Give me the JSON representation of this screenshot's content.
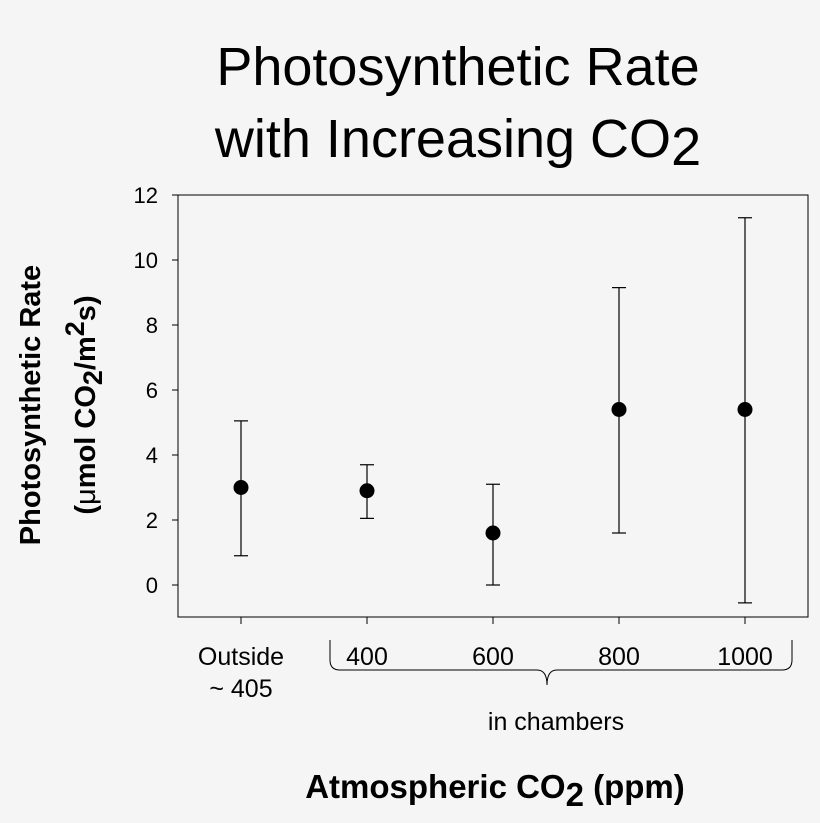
{
  "chart_data": {
    "type": "scatter",
    "title": {
      "line1": "Photosynthetic Rate",
      "line2_main": "with Increasing CO",
      "line2_sub": "2"
    },
    "ylabel": {
      "line1": "Photosynthetic Rate",
      "line2_prefix": "(",
      "line2_mu": "μ",
      "line2_a": "mol CO",
      "line2_sub": "2",
      "line2_b": "/m",
      "line2_sup": "2",
      "line2_c": "s)"
    },
    "xlabel": {
      "main": "Atmospheric CO",
      "sub": "2",
      "rest": " (ppm)"
    },
    "ylim": [
      -1,
      12
    ],
    "yticks": [
      "0",
      "2",
      "4",
      "6",
      "8",
      "10",
      "12"
    ],
    "categories": [
      {
        "line1": "Outside",
        "line2": "~ 405"
      },
      {
        "line1": "400",
        "line2": ""
      },
      {
        "line1": "600",
        "line2": ""
      },
      {
        "line1": "800",
        "line2": ""
      },
      {
        "line1": "1000",
        "line2": ""
      }
    ],
    "series": [
      {
        "values": [
          3.0,
          2.9,
          1.6,
          5.4,
          5.4
        ],
        "error_low": [
          0.9,
          2.05,
          0.0,
          1.6,
          -0.55
        ],
        "error_high": [
          5.05,
          3.7,
          3.1,
          9.15,
          11.3
        ]
      }
    ],
    "bracket_label": "in chambers",
    "grid": false,
    "legend": "none",
    "marker_color": "#000000"
  }
}
